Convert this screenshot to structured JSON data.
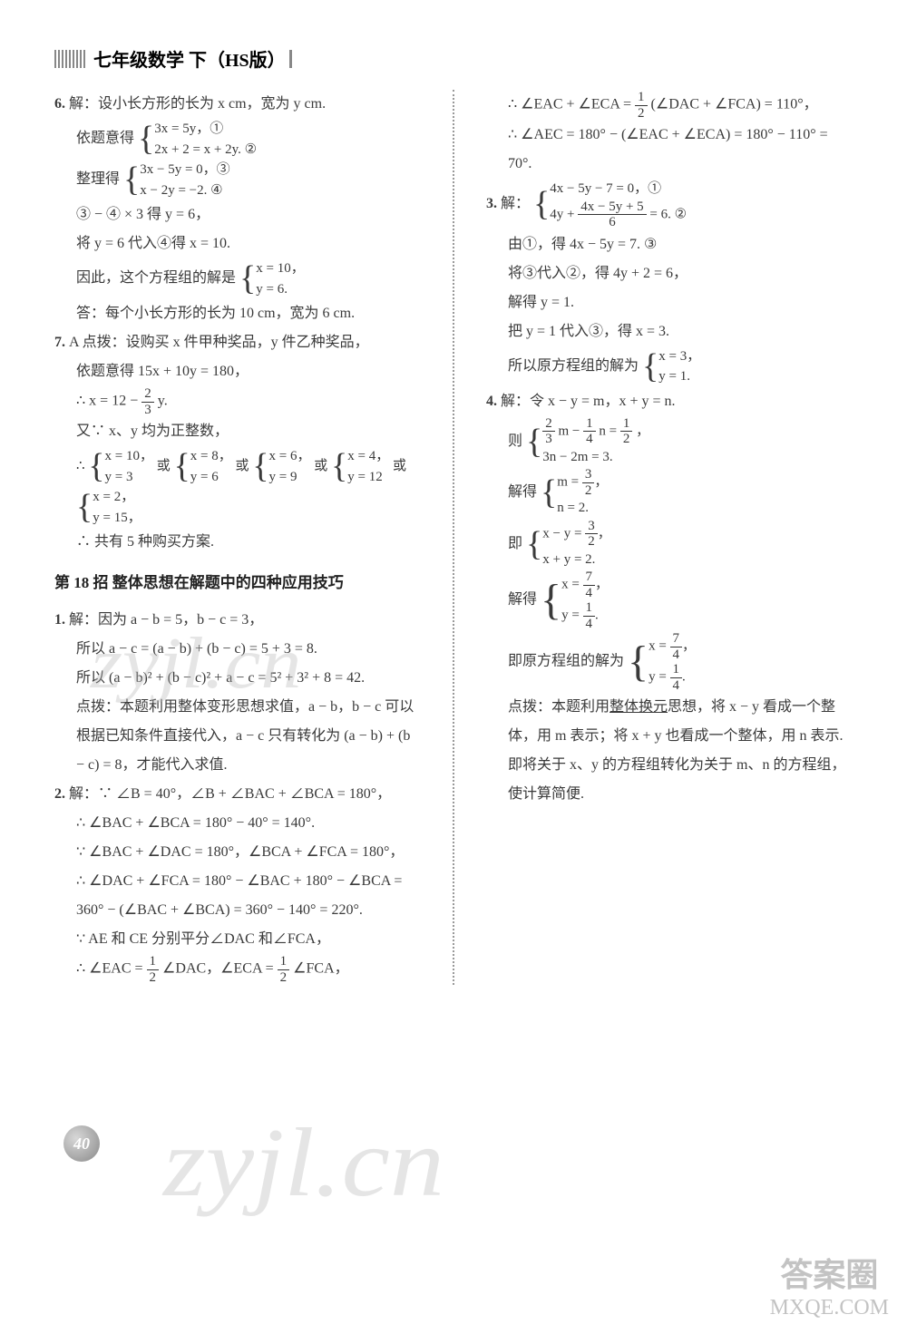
{
  "header": {
    "title": "七年级数学 下（HS版）"
  },
  "left": {
    "q6_intro": "解：设小长方形的长为 x cm，宽为 y cm.",
    "q6_l1": "依题意得",
    "q6_sys1a": "3x = 5y，①",
    "q6_sys1b": "2x + 2 = x + 2y. ②",
    "q6_l2": "整理得",
    "q6_sys2a": "3x − 5y = 0，③",
    "q6_sys2b": "x − 2y = −2. ④",
    "q6_l3": "③ − ④ × 3 得 y = 6，",
    "q6_l4": "将 y = 6 代入④得 x = 10.",
    "q6_l5": "因此，这个方程组的解是",
    "q6_sys3a": "x = 10，",
    "q6_sys3b": "y = 6.",
    "q6_ans": "答：每个小长方形的长为 10 cm，宽为 6 cm.",
    "q7_head": "A 点拨：设购买 x 件甲种奖品，y 件乙种奖品，",
    "q7_l1": "依题意得 15x + 10y = 180，",
    "q7_l2a": "∴ x = 12 − ",
    "q7_l2_num": "2",
    "q7_l2_den": "3",
    "q7_l2b": "y.",
    "q7_l3": "又∵ x、y 均为正整数，",
    "q7_l4": "∴ ",
    "q7_opt1a": "x = 10，",
    "q7_opt1b": "y = 3",
    "q7_or": " 或 ",
    "q7_opt2a": "x = 8，",
    "q7_opt2b": "y = 6",
    "q7_opt3a": "x = 6，",
    "q7_opt3b": "y = 9",
    "q7_opt4a": "x = 4，",
    "q7_opt4b": "y = 12",
    "q7_opt5a": "x = 2，",
    "q7_opt5b": "y = 15，",
    "q7_l5": "∴ 共有 5 种购买方案.",
    "section": "第 18 招 整体思想在解题中的四种应用技巧",
    "s1_l1": "解：因为 a − b = 5，b − c = 3，",
    "s1_l2": "所以 a − c = (a − b) + (b − c) = 5 + 3 = 8.",
    "s1_l3": "所以 (a − b)² + (b − c)² + a − c = 5² + 3² + 8 = 42.",
    "s1_note": "点拨：本题利用整体变形思想求值，a − b，b − c 可以根据已知条件直接代入，a − c 只有转化为 (a − b) + (b − c) = 8，才能代入求值.",
    "s2_l1": "解：∵ ∠B = 40°，∠B + ∠BAC + ∠BCA = 180°，",
    "s2_l2": "∴ ∠BAC + ∠BCA = 180° − 40° = 140°.",
    "s2_l3": "∵ ∠BAC + ∠DAC = 180°，∠BCA + ∠FCA = 180°，",
    "s2_l4": "∴ ∠DAC + ∠FCA = 180° − ∠BAC + 180° − ∠BCA =",
    "s2_l5": "360° − (∠BAC + ∠BCA) = 360° − 140° = 220°.",
    "s2_l6": "∵ AE 和 CE 分别平分∠DAC 和∠FCA，",
    "s2_l7a": "∴ ∠EAC = ",
    "s2_l7_num": "1",
    "s2_l7_den": "2",
    "s2_l7b": "∠DAC，∠ECA = ",
    "s2_l7c": "∠FCA，"
  },
  "right": {
    "r_l1a": "∴ ∠EAC + ∠ECA = ",
    "r_l1_num": "1",
    "r_l1_den": "2",
    "r_l1b": "(∠DAC + ∠FCA) = 110°，",
    "r_l2": "∴ ∠AEC = 180° − (∠EAC + ∠ECA) = 180° − 110° = 70°.",
    "q3_head": "解：",
    "q3_sys1a": "4x − 5y − 7 = 0，①",
    "q3_sys1b_a": "4y + ",
    "q3_sys1b_num": "4x − 5y + 5",
    "q3_sys1b_den": "6",
    "q3_sys1b_b": " = 6. ②",
    "q3_l1": "由①，得 4x − 5y = 7. ③",
    "q3_l2": "将③代入②，得 4y + 2 = 6，",
    "q3_l3": "解得 y = 1.",
    "q3_l4": "把 y = 1 代入③，得 x = 3.",
    "q3_l5": "所以原方程组的解为",
    "q3_ansA": "x = 3，",
    "q3_ansB": "y = 1.",
    "q4_head": "解：令 x − y = m，x + y = n.",
    "q4_l1": "则",
    "q4_sys1a_a": "",
    "q4_f1n": "2",
    "q4_f1d": "3",
    "q4_mid1": "m − ",
    "q4_f2n": "1",
    "q4_f2d": "4",
    "q4_mid2": "n = ",
    "q4_f3n": "1",
    "q4_f3d": "2",
    "q4_end1": "，",
    "q4_sys1b": "3n − 2m = 3.",
    "q4_l2": "解得",
    "q4_sol1a_a": "m = ",
    "q4_s1n": "3",
    "q4_s1d": "2",
    "q4_sol1a_b": "，",
    "q4_sol1b": "n = 2.",
    "q4_l3": "即",
    "q4_sol2a_a": "x − y = ",
    "q4_sol2a_b": "，",
    "q4_sol2b": "x + y = 2.",
    "q4_l4": "解得",
    "q4_sol3a_a": "x = ",
    "q4_s3n": "7",
    "q4_s3d": "4",
    "q4_sol3a_b": "，",
    "q4_sol3b_a": "y = ",
    "q4_s3bn": "1",
    "q4_s3bd": "4",
    "q4_sol3b_b": ".",
    "q4_l5": "即原方程组的解为",
    "q4_note": "点拨：本题利用整体换元思想，将 x − y 看成一个整体，用 m 表示；将 x + y 也看成一个整体，用 n 表示. 即将关于 x、y 的方程组转化为关于 m、n 的方程组，使计算简便.",
    "q4_underline": "整体换元"
  },
  "page": "40",
  "watermark": "zyjl.cn",
  "logo_cn": "答案圈",
  "logo_en": "MXQE.COM"
}
